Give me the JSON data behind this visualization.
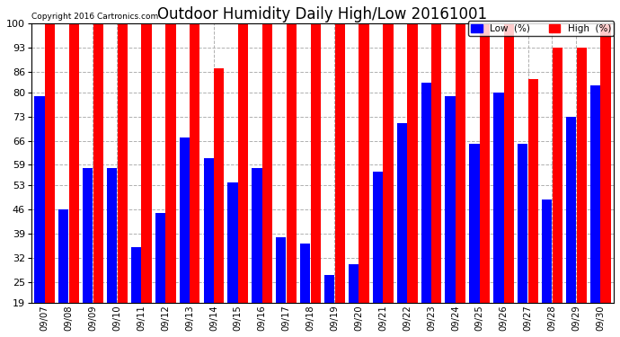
{
  "title": "Outdoor Humidity Daily High/Low 20161001",
  "copyright": "Copyright 2016 Cartronics.com",
  "dates": [
    "09/07",
    "09/08",
    "09/09",
    "09/10",
    "09/11",
    "09/12",
    "09/13",
    "09/14",
    "09/15",
    "09/16",
    "09/17",
    "09/18",
    "09/19",
    "09/20",
    "09/21",
    "09/22",
    "09/23",
    "09/24",
    "09/25",
    "09/26",
    "09/27",
    "09/28",
    "09/29",
    "09/30"
  ],
  "high": [
    100,
    100,
    100,
    100,
    100,
    100,
    100,
    87,
    100,
    100,
    100,
    100,
    100,
    100,
    100,
    100,
    100,
    100,
    100,
    100,
    84,
    93,
    93,
    100
  ],
  "low": [
    79,
    46,
    58,
    58,
    35,
    45,
    67,
    61,
    54,
    58,
    38,
    36,
    27,
    30,
    57,
    71,
    83,
    79,
    65,
    80,
    65,
    49,
    73,
    82
  ],
  "high_color": "#ff0000",
  "low_color": "#0000ff",
  "bg_color": "#ffffff",
  "yticks": [
    19,
    25,
    32,
    39,
    46,
    53,
    59,
    66,
    73,
    80,
    86,
    93,
    100
  ],
  "ymin": 19,
  "ymax": 100,
  "grid_color": "#b0b0b0",
  "title_fontsize": 12,
  "bar_width": 0.42,
  "bar_gap": 0.01
}
